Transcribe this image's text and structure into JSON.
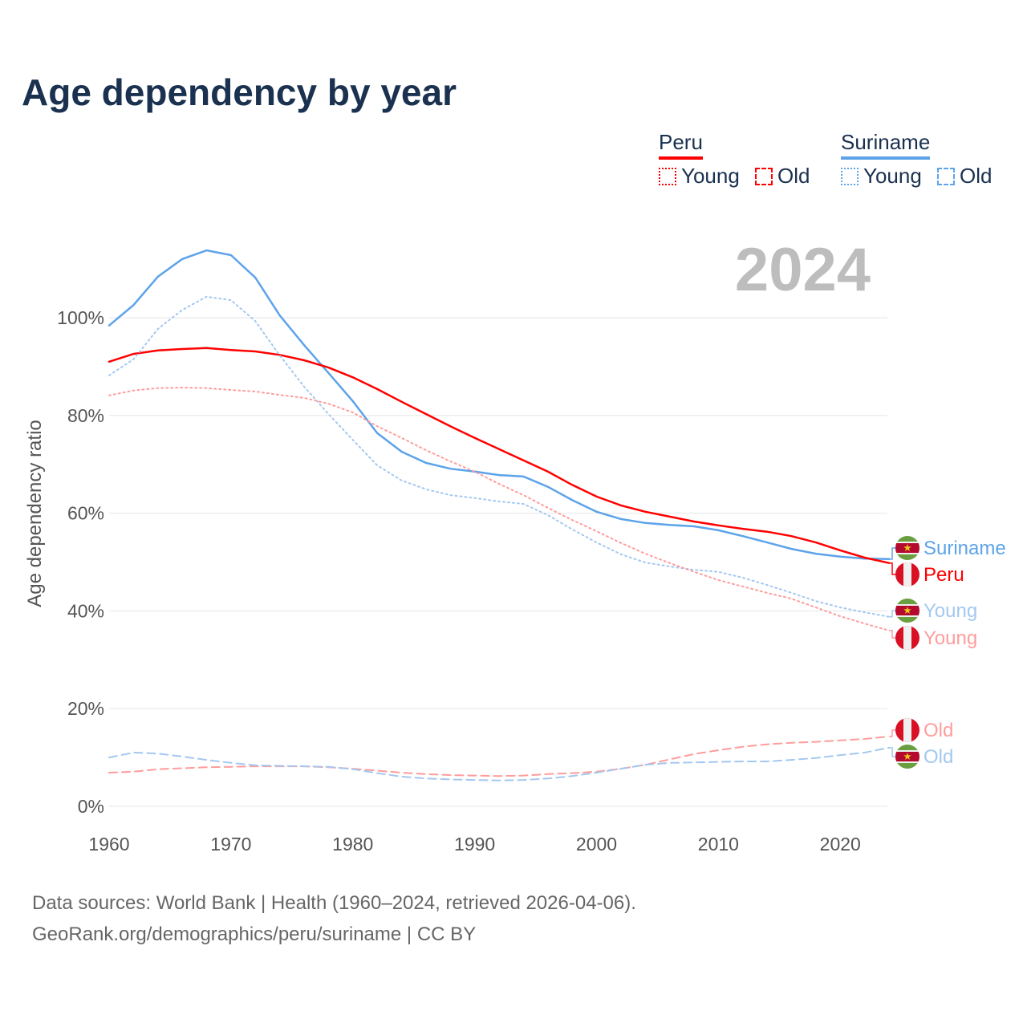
{
  "title": "Age dependency by year",
  "legend": {
    "countries": [
      {
        "name": "Peru",
        "color": "#ff0000",
        "light": "#ff9c9c",
        "items": [
          "Young",
          "Old"
        ]
      },
      {
        "name": "Suriname",
        "color": "#5da3ea",
        "light": "#a3c8f0",
        "items": [
          "Young",
          "Old"
        ]
      }
    ]
  },
  "year_label": "2024",
  "source_line1": "Data sources: World Bank | Health (1960–2024, retrieved 2026-04-06).",
  "source_line2": "GeoRank.org/demographics/peru/suriname | CC BY",
  "chart_data": {
    "type": "line",
    "title": "Age dependency by year",
    "xlabel": "",
    "ylabel": "Age dependency ratio",
    "xlim": [
      1960,
      2024
    ],
    "ylim": [
      0,
      110
    ],
    "x_ticks": [
      1960,
      1970,
      1980,
      1990,
      2000,
      2010,
      2020
    ],
    "x_tick_labels": [
      "1960",
      "1970",
      "1980",
      "1990",
      "2000",
      "2010",
      "2020"
    ],
    "y_ticks": [
      0,
      20,
      40,
      60,
      80,
      100
    ],
    "y_tick_labels": [
      "0%",
      "20%",
      "40%",
      "60%",
      "80%",
      "100%"
    ],
    "grid": true,
    "legend_position": "top-right",
    "x": [
      1960,
      1962,
      1964,
      1966,
      1968,
      1970,
      1972,
      1974,
      1976,
      1978,
      1980,
      1982,
      1984,
      1986,
      1988,
      1990,
      1992,
      1994,
      1996,
      1998,
      2000,
      2002,
      2004,
      2006,
      2008,
      2010,
      2012,
      2014,
      2016,
      2018,
      2020,
      2022,
      2024
    ],
    "series": [
      {
        "name": "Suriname",
        "end_label": "Suriname",
        "country": "suriname",
        "style": "solid",
        "color": "#5da3ea",
        "values": [
          98.4,
          102.6,
          108.4,
          112,
          113.8,
          112.8,
          108.2,
          100.5,
          94.4,
          88.7,
          82.9,
          76.4,
          72.6,
          70.3,
          69.1,
          68.5,
          67.8,
          67.5,
          65.4,
          62.7,
          60.3,
          58.8,
          58.0,
          57.6,
          57.3,
          56.5,
          55.3,
          54.0,
          52.7,
          51.7,
          51.1,
          50.7,
          50.6
        ]
      },
      {
        "name": "Peru",
        "end_label": "Peru",
        "country": "peru",
        "style": "solid",
        "color": "#ff0000",
        "values": [
          91,
          92.6,
          93.3,
          93.6,
          93.8,
          93.4,
          93.1,
          92.4,
          91.3,
          89.8,
          87.8,
          85.4,
          82.8,
          80.3,
          77.8,
          75.4,
          73.1,
          70.8,
          68.5,
          65.8,
          63.4,
          61.6,
          60.3,
          59.3,
          58.3,
          57.5,
          56.8,
          56.2,
          55.3,
          54,
          52.4,
          50.9,
          49.8
        ]
      },
      {
        "name": "Suriname Young",
        "end_label": "Young",
        "country": "suriname",
        "style": "dotted",
        "color": "#a3c8f0",
        "values": [
          88.2,
          91.5,
          97.7,
          101.6,
          104.3,
          103.6,
          99.3,
          92.3,
          85.9,
          80.3,
          75,
          69.8,
          66.7,
          64.9,
          63.7,
          63.1,
          62.4,
          61.9,
          59.6,
          56.7,
          54,
          51.6,
          49.9,
          49.1,
          48.4,
          48,
          46.8,
          45.3,
          43.7,
          42,
          40.7,
          39.7,
          38.8
        ]
      },
      {
        "name": "Peru Young",
        "end_label": "Young",
        "country": "peru",
        "style": "dotted",
        "color": "#ff9c9c",
        "values": [
          84.1,
          85.1,
          85.6,
          85.7,
          85.6,
          85.2,
          84.9,
          84.2,
          83.6,
          82.4,
          80.6,
          77.8,
          75.4,
          72.9,
          70.6,
          68.5,
          66,
          63.7,
          61.1,
          58.6,
          56.3,
          53.9,
          51.7,
          49.8,
          48,
          46.3,
          45,
          43.7,
          42.5,
          40.7,
          38.9,
          37.4,
          36
        ]
      },
      {
        "name": "Peru Old",
        "end_label": "Old",
        "country": "peru",
        "style": "dashed",
        "color": "#ff9c9c",
        "values": [
          6.9,
          7.1,
          7.6,
          7.8,
          8,
          8.1,
          8.2,
          8.2,
          8.2,
          8,
          7.7,
          7.3,
          6.9,
          6.6,
          6.4,
          6.3,
          6.2,
          6.3,
          6.6,
          6.8,
          7.1,
          7.7,
          8.5,
          9.6,
          10.7,
          11.5,
          12.2,
          12.7,
          13,
          13.2,
          13.5,
          13.8,
          14.3
        ]
      },
      {
        "name": "Suriname Old",
        "end_label": "Old",
        "country": "suriname",
        "style": "dashed",
        "color": "#a3c8f0",
        "values": [
          10,
          11,
          10.8,
          10.2,
          9.5,
          8.9,
          8.4,
          8.3,
          8.2,
          8.1,
          7.6,
          6.8,
          6.1,
          5.7,
          5.5,
          5.4,
          5.3,
          5.4,
          5.7,
          6.2,
          6.9,
          7.7,
          8.5,
          8.9,
          9,
          9.1,
          9.2,
          9.2,
          9.5,
          9.9,
          10.5,
          11,
          12
        ]
      }
    ]
  }
}
